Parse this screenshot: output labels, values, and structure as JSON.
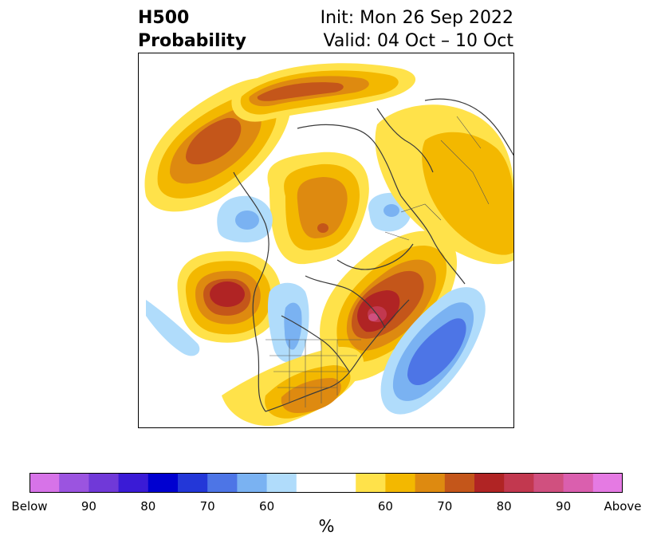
{
  "header": {
    "title_line1": "H500",
    "title_line2": "Probability",
    "init_text": "Init: Mon 26 Sep 2022",
    "valid_text": "Valid: 04 Oct – 10 Oct"
  },
  "colorbar": {
    "unit": "%",
    "tick_labels": [
      "Below",
      "90",
      "80",
      "70",
      "60",
      "60",
      "70",
      "80",
      "90",
      "Above"
    ],
    "below_colors": [
      "#d773e8",
      "#9b54e0",
      "#7039d8",
      "#3a1bd6",
      "#0000d0",
      "#2337d8",
      "#4d75e6",
      "#7ab2f2",
      "#b0dcfb"
    ],
    "neutral_color": "#ffffff",
    "above_colors": [
      "#ffe24a",
      "#f3b800",
      "#de8a10",
      "#c4561a",
      "#b02424",
      "#c2384f",
      "#d0507f",
      "#da5fae",
      "#e57ae3"
    ]
  },
  "map": {
    "projection": "north-polar-stereographic",
    "region": "North America / North Atlantic / Arctic",
    "features": [
      "coastlines",
      "country-borders",
      "state-borders"
    ]
  }
}
